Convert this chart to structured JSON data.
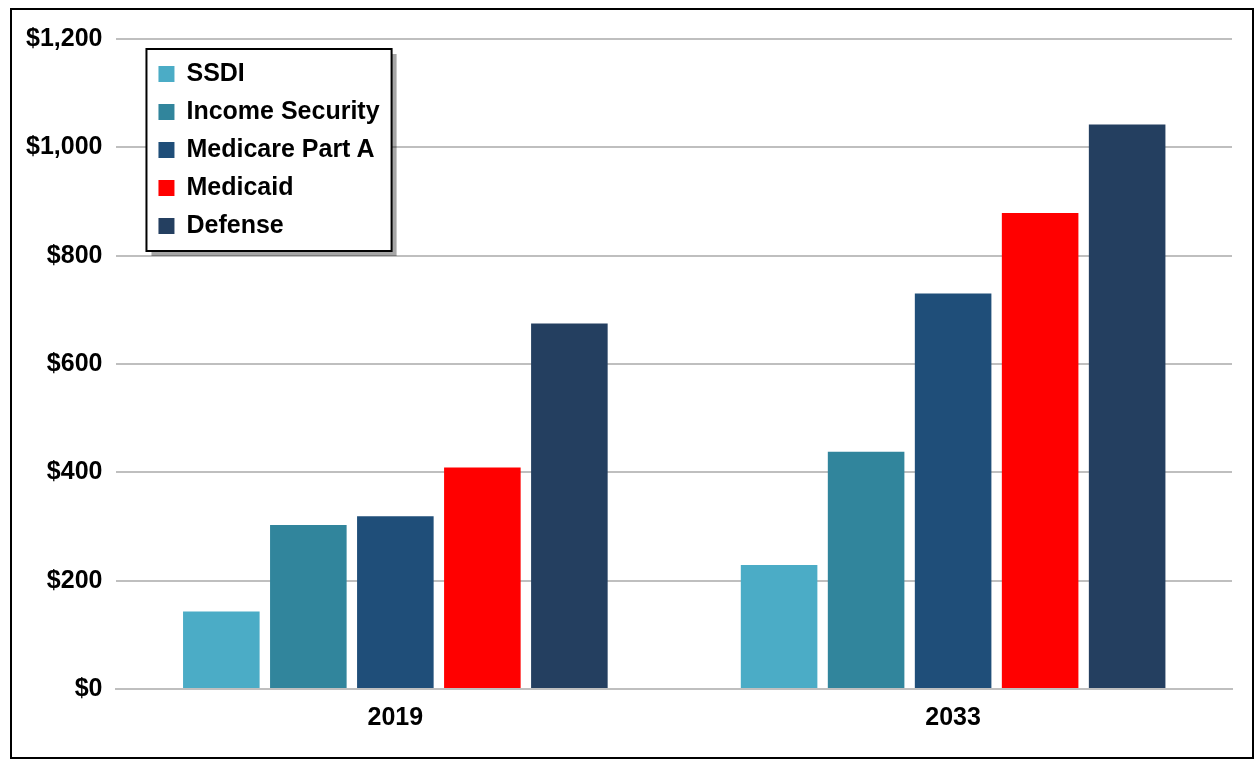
{
  "chart_data": {
    "type": "bar",
    "categories": [
      "2019",
      "2033"
    ],
    "series": [
      {
        "name": "SSDI",
        "color": "#4bacc6",
        "values": [
          143,
          229
        ]
      },
      {
        "name": "Income Security",
        "color": "#31859c",
        "values": [
          303,
          438
        ]
      },
      {
        "name": "Medicare Part A",
        "color": "#1f4e79",
        "values": [
          319,
          730
        ]
      },
      {
        "name": "Medicaid",
        "color": "#ff0000",
        "values": [
          409,
          879
        ]
      },
      {
        "name": "Defense",
        "color": "#243f60",
        "values": [
          675,
          1042
        ]
      }
    ],
    "ylim": [
      0,
      1200
    ],
    "yticks": [
      {
        "value": 0,
        "label": "$0"
      },
      {
        "value": 200,
        "label": "$200"
      },
      {
        "value": 400,
        "label": "$400"
      },
      {
        "value": 600,
        "label": "$600"
      },
      {
        "value": 800,
        "label": "$800"
      },
      {
        "value": 1000,
        "label": "$1,000"
      },
      {
        "value": 1200,
        "label": "$1,200"
      }
    ],
    "grid": "y",
    "legend": "top left"
  }
}
